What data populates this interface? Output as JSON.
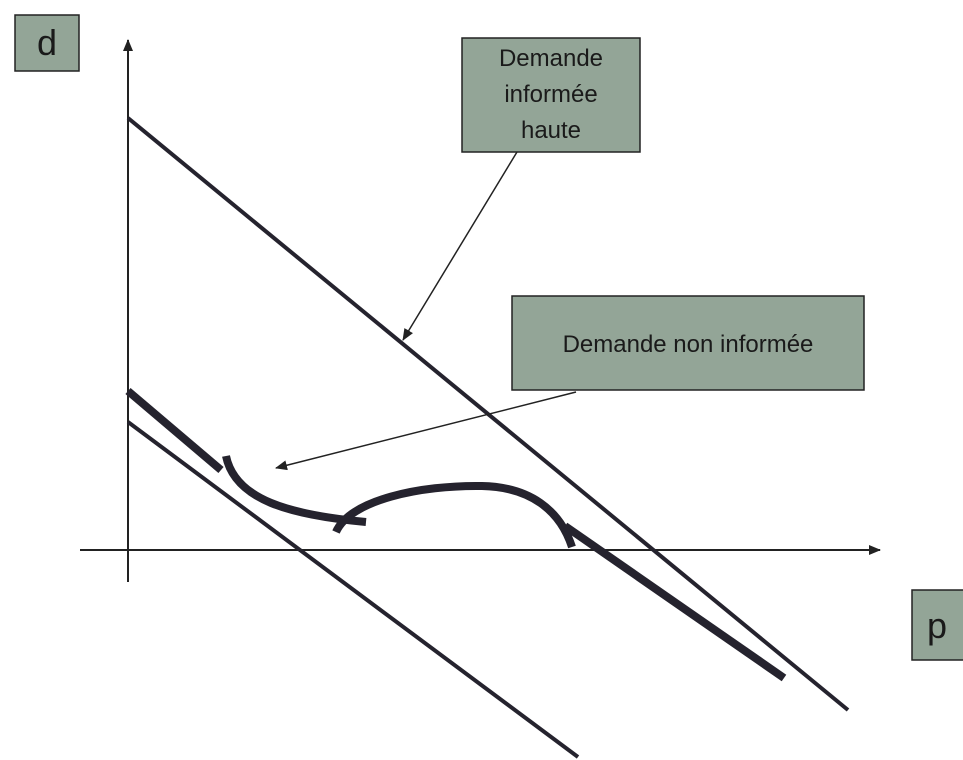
{
  "axis_labels": {
    "y": "d",
    "x": "p"
  },
  "callouts": [
    {
      "lines": [
        "Demande",
        "informée",
        "haute"
      ]
    },
    {
      "lines": [
        "Demande non informée"
      ]
    }
  ]
}
